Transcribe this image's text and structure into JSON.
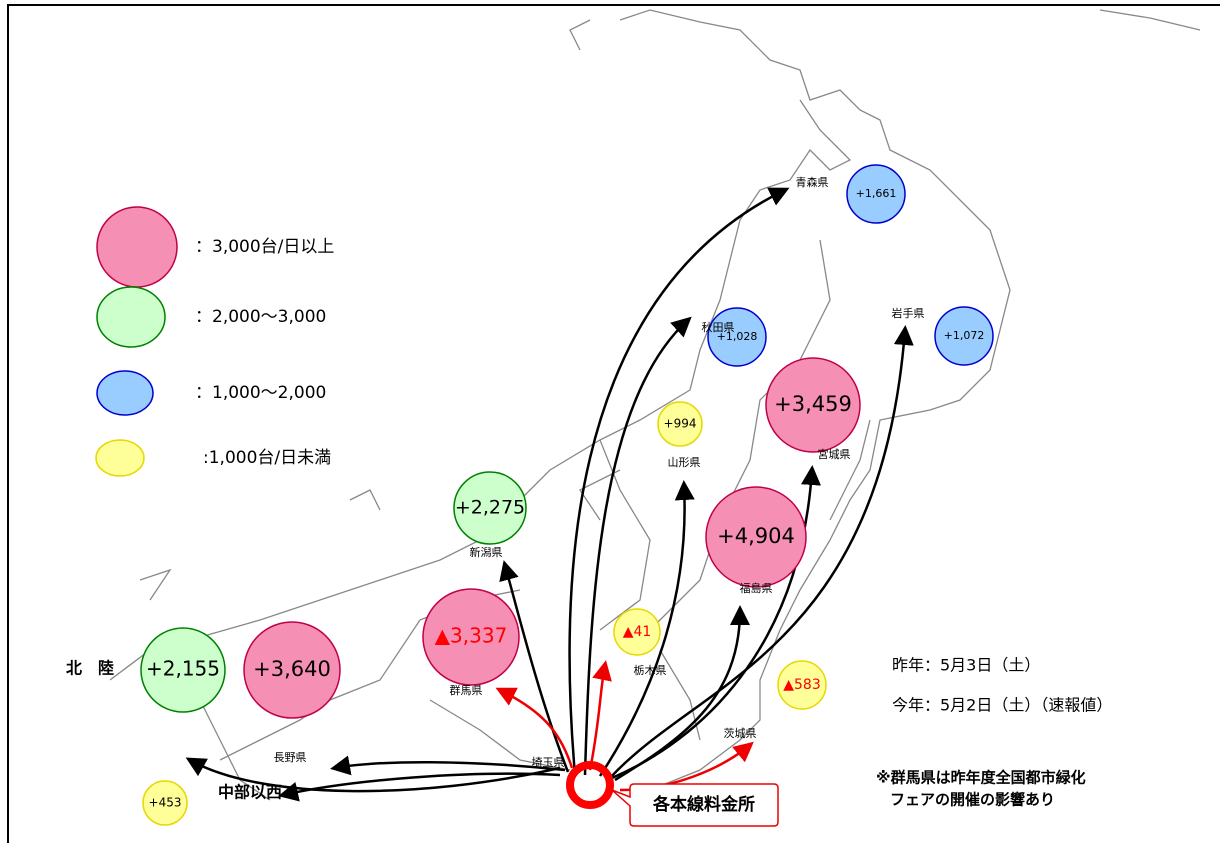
{
  "legend": [
    {
      "label": "：3,000台/日以上",
      "color": "#f58fb4",
      "border": "#c0004a"
    },
    {
      "label": "：2,000～3,000",
      "color": "#ccffcc",
      "border": "#008000"
    },
    {
      "label": "：1,000～2,000",
      "color": "#99ccff",
      "border": "#0000cc"
    },
    {
      "label": ":1,000台/日未満",
      "color": "#ffff99",
      "border": "#e6d800"
    }
  ],
  "regions": [
    {
      "name": "青森県",
      "value": "+1,661",
      "color": "#99ccff",
      "text_color": "#000000"
    },
    {
      "name": "秋田県",
      "value": "+1,028",
      "color": "#99ccff",
      "text_color": "#000000"
    },
    {
      "name": "岩手県",
      "value": "+1,072",
      "color": "#99ccff",
      "text_color": "#000000"
    },
    {
      "name": "山形県",
      "value": "+994",
      "color": "#ffff99",
      "text_color": "#000000"
    },
    {
      "name": "宮城県",
      "value": "+3,459",
      "color": "#f58fb4",
      "text_color": "#000000"
    },
    {
      "name": "新潟県",
      "value": "+2,275",
      "color": "#ccffcc",
      "text_color": "#000000"
    },
    {
      "name": "福島県",
      "value": "+4,904",
      "color": "#f58fb4",
      "text_color": "#000000"
    },
    {
      "name": "栃木県",
      "value": "▲41",
      "color": "#ffff99",
      "text_color": "#ff0000"
    },
    {
      "name": "群馬県",
      "value": "▲3,337",
      "color": "#f58fb4",
      "text_color": "#ff0000"
    },
    {
      "name": "茨城県",
      "value": "▲583",
      "color": "#ffff99",
      "text_color": "#ff0000"
    },
    {
      "name": "長野県",
      "value": "+3,640",
      "color": "#f58fb4",
      "text_color": "#000000"
    },
    {
      "name": "北　陸",
      "value": "+2,155",
      "color": "#ccffcc",
      "text_color": "#000000"
    },
    {
      "name": "中部以西",
      "value": "+453",
      "color": "#ffff99",
      "text_color": "#000000"
    }
  ],
  "origin_label": "埼玉県",
  "origin": "各本線料金所",
  "dates": [
    "昨年：5月3日（土）",
    "今年：5月2日（土）（速報値）"
  ],
  "note": [
    "※群馬県は昨年度全国都市緑化",
    "フェアの開催の影響あり"
  ]
}
